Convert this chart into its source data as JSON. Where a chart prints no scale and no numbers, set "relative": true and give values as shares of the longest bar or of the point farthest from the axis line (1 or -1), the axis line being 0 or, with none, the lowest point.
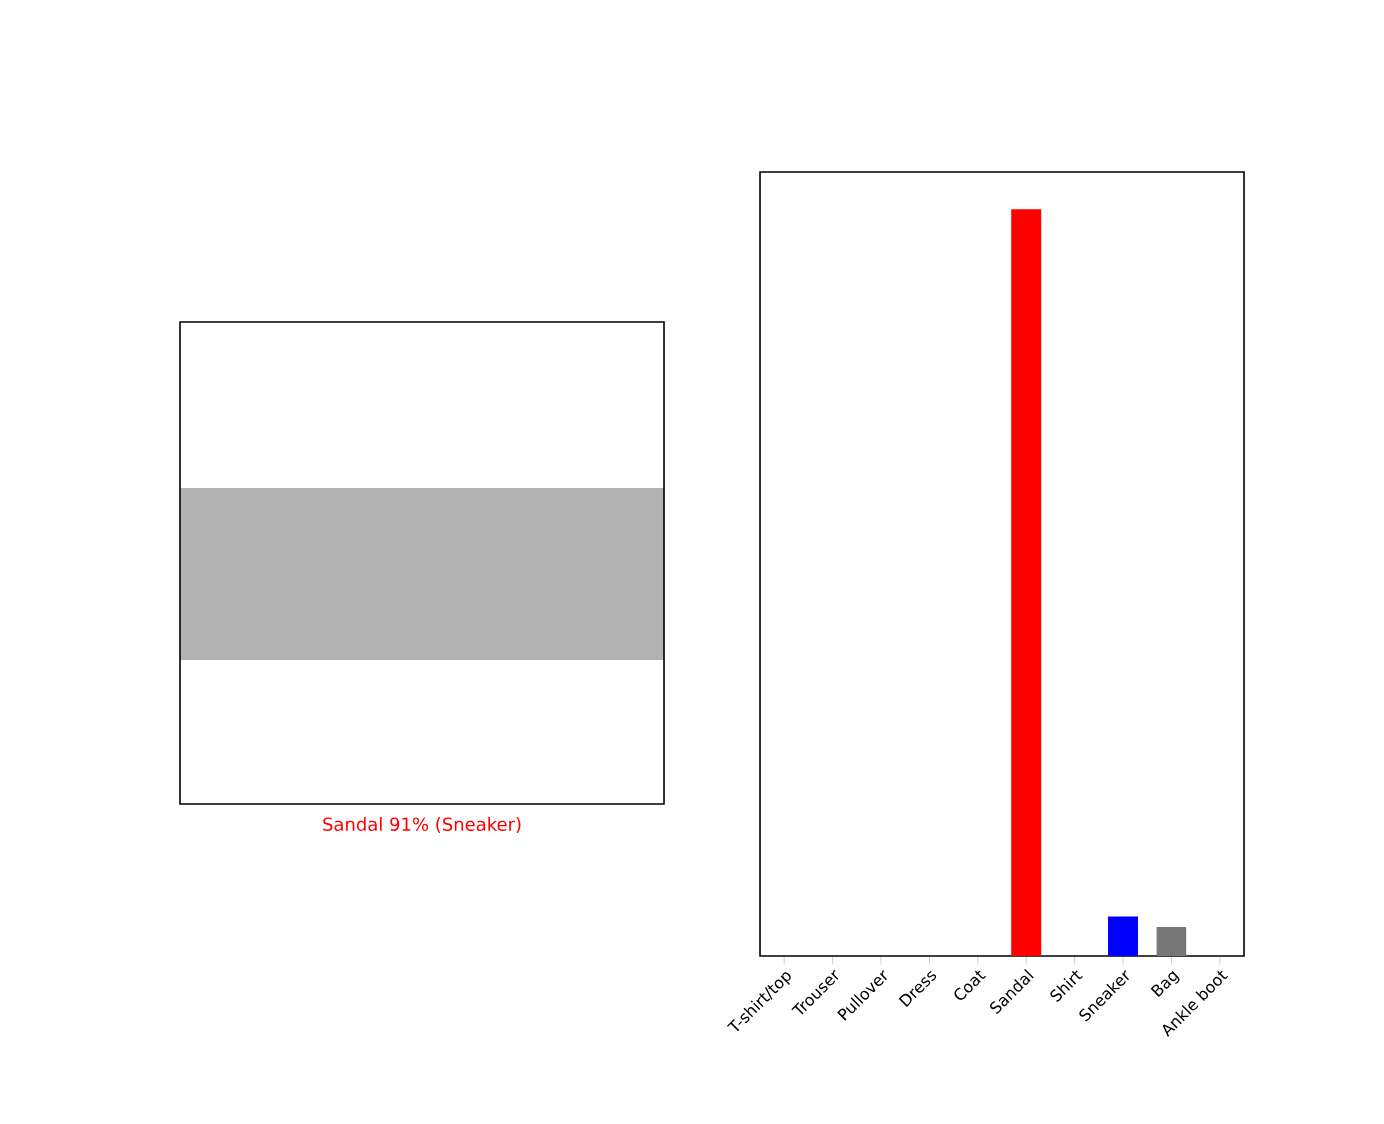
{
  "chart_data": {
    "type": "bar",
    "relative": true,
    "categories": [
      "T-shirt/top",
      "Trouser",
      "Pullover",
      "Dress",
      "Coat",
      "Sandal",
      "Shirt",
      "Sneaker",
      "Bag",
      "Ankle boot"
    ],
    "values": [
      0,
      0,
      0,
      0,
      0,
      1,
      0,
      0.053,
      0.039,
      0
    ],
    "colors": [
      "#777777",
      "#777777",
      "#777777",
      "#777777",
      "#777777",
      "#ff0000",
      "#777777",
      "#0000ff",
      "#777777",
      "#777777"
    ],
    "annotations": [
      "Sandal 91% (Sneaker)"
    ]
  }
}
